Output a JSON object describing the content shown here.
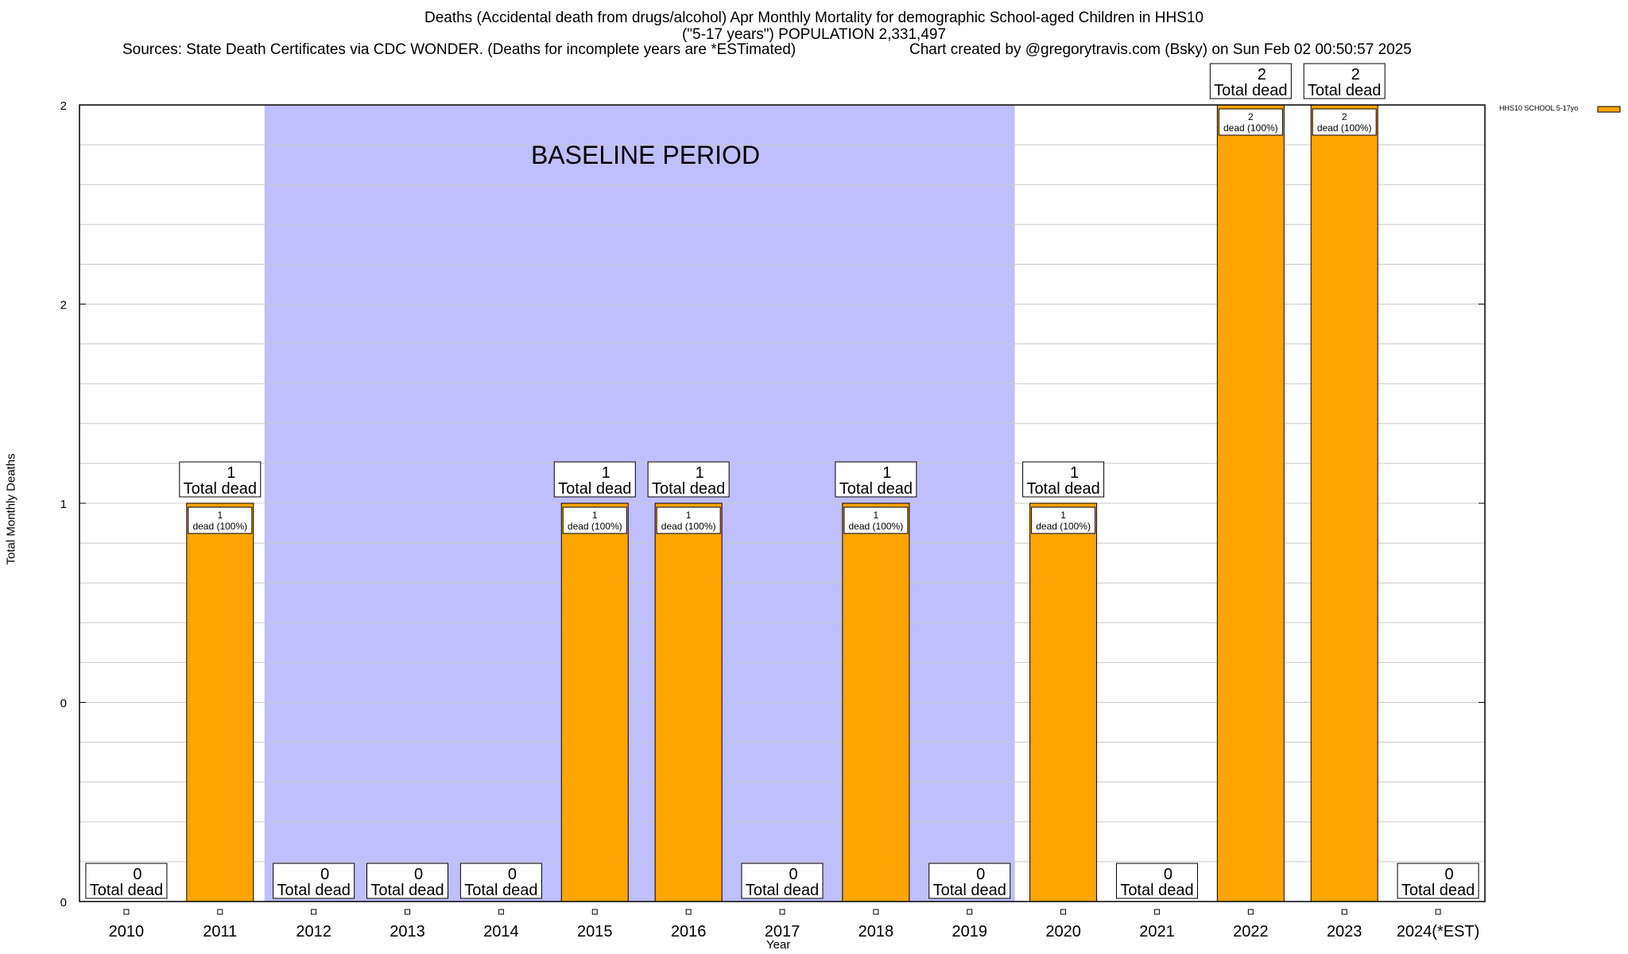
{
  "header": {
    "title_line1": "Deaths (Accidental death from drugs/alcohol) Apr Monthly Mortality for demographic School-aged Children in HHS10",
    "title_line2": "(\"5-17 years\") POPULATION 2,331,497",
    "sources": "Sources: State Death Certificates via CDC WONDER. (Deaths for incomplete years are *ESTimated)",
    "credit": "Chart created by @gregorytravis.com (Bsky) on Sun Feb 02 00:50:57 2025"
  },
  "chart_data": {
    "type": "bar",
    "title": "Deaths (Accidental death from drugs/alcohol) Apr Monthly Mortality for demographic School-aged Children in HHS10",
    "xlabel": "Year",
    "ylabel": "Total Monthly Deaths",
    "categories": [
      "2010",
      "2011",
      "2012",
      "2013",
      "2014",
      "2015",
      "2016",
      "2017",
      "2018",
      "2019",
      "2020",
      "2021",
      "2022",
      "2023",
      "2024(*EST)"
    ],
    "series": [
      {
        "name": "HHS10 SCHOOL 5-17yo",
        "color": "#ffa500",
        "values": [
          0,
          1,
          0,
          0,
          0,
          1,
          1,
          0,
          1,
          0,
          1,
          0,
          2,
          2,
          0
        ]
      }
    ],
    "y_tick_labels": [
      "0",
      "0",
      "1",
      "2",
      "2"
    ],
    "ylim": [
      0,
      2
    ],
    "baseline_period": {
      "label": "BASELINE PERIOD",
      "from": "2012",
      "to": "2019",
      "color": "#bfbfff"
    },
    "total_label_suffix": "Total dead",
    "inner_label_suffix": "dead (100%)",
    "grid": true,
    "legend_position": "top-right"
  }
}
